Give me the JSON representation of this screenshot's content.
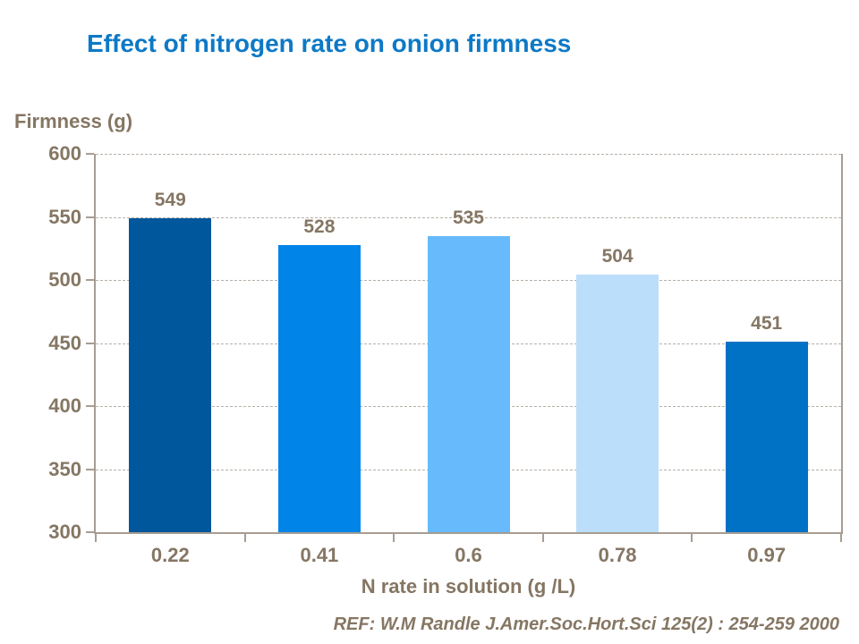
{
  "chart_data": {
    "type": "bar",
    "title": "Effect of nitrogen rate on onion firmness",
    "xlabel": "N rate in solution (g /L)",
    "ylabel": "Firmness (g)",
    "categories": [
      "0.22",
      "0.41",
      "0.6",
      "0.78",
      "0.97"
    ],
    "values": [
      549,
      528,
      535,
      504,
      451
    ],
    "data_labels": [
      "549",
      "528",
      "535",
      "504",
      "451"
    ],
    "bar_colors": [
      "#00579B",
      "#0084E8",
      "#67BAFB",
      "#BBDEFA",
      "#0072C6"
    ],
    "ylim": [
      300,
      600
    ],
    "ytick_step": 50,
    "ytick_labels": [
      "300",
      "350",
      "400",
      "450",
      "500",
      "550",
      "600"
    ],
    "grid": "horizontal dashed",
    "legend": "none"
  },
  "footer": {
    "reference": "REF: W.M Randle  J.Amer.Soc.Hort.Sci 125(2) : 254-259 2000"
  },
  "colors": {
    "title": "#0d79c6",
    "axis_text": "#857663",
    "axis_line": "#a79d93",
    "gridline": "#b9b0a7",
    "background": "#ffffff"
  }
}
